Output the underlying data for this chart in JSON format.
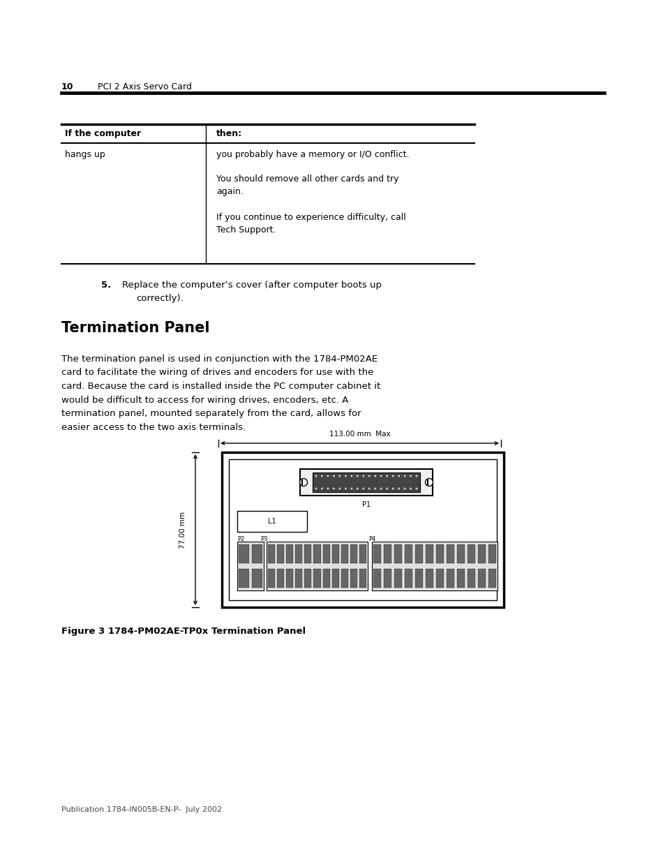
{
  "bg_color": "#ffffff",
  "page_num": "10",
  "page_subtitle": "PCI 2 Axis Servo Card",
  "table": {
    "col1_header": "If the computer",
    "col2_header": "then:",
    "row1_text1": "hangs up",
    "row1_text2_line1": "you probably have a memory or I/O conflict.",
    "row1_text2_line2": "You should remove all other cards and try",
    "row1_text2_line3": "again.",
    "row1_text2_line4": "If you continue to experience difficulty, call",
    "row1_text2_line5": "Tech Support."
  },
  "step5_text_line1": "Replace the computer’s cover (after computer boots up",
  "step5_text_line2": "correctly).",
  "section_title": "Termination Panel",
  "body_text": [
    "The termination panel is used in conjunction with the 1784-PM02AE",
    "card to facilitate the wiring of drives and encoders for use with the",
    "card. Because the card is installed inside the PC computer cabinet it",
    "would be difficult to access for wiring drives, encoders, etc. A",
    "termination panel, mounted separately from the card, allows for",
    "easier access to the two axis terminals."
  ],
  "dim_label_horiz": "113.00 mm  Max",
  "dim_label_vert": "77.00 mm",
  "connector_label": "P1",
  "label_L1": "L1",
  "label_P2": "P2",
  "label_P3": "P3",
  "label_P4": "P4",
  "figure_caption": "Figure 3 1784-PM02AE-TP0x Termination Panel",
  "footer_text": "Publication 1784-IN005B-EN-P-  July 2002"
}
